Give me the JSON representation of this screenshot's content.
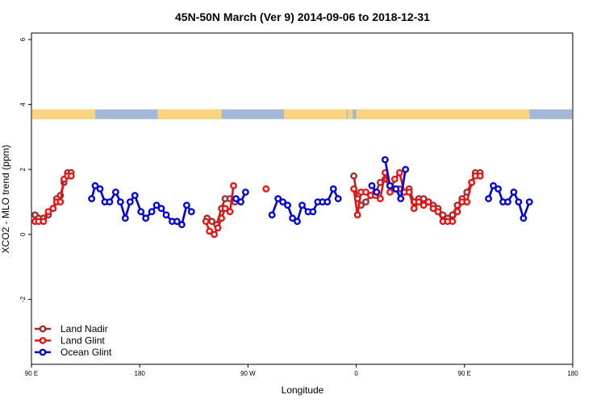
{
  "chart_data": {
    "type": "line",
    "title": "45N-50N March (Ver 9)   2014-09-06 to 2018-12-31",
    "xlabel": "Longitude",
    "ylabel": "XCO2 - MLO trend (ppm)",
    "xlim": [
      90,
      540
    ],
    "ylim": [
      -4,
      6.2
    ],
    "x_ticks": [
      {
        "value": 90,
        "label": "90 E"
      },
      {
        "value": 180,
        "label": "180"
      },
      {
        "value": 270,
        "label": "90 W"
      },
      {
        "value": 360,
        "label": "0"
      },
      {
        "value": 450,
        "label": "90 E"
      },
      {
        "value": 540,
        "label": "180"
      }
    ],
    "y_ticks": [
      {
        "value": -2,
        "label": "-2"
      },
      {
        "value": 0,
        "label": "0"
      },
      {
        "value": 2,
        "label": "2"
      },
      {
        "value": 4,
        "label": "4"
      },
      {
        "value": 6,
        "label": "6"
      }
    ],
    "land_band": {
      "y_range": [
        3.55,
        3.85
      ],
      "ocean_color": "#a3b8d8",
      "land_color": "#f8d57e",
      "land_spans": [
        [
          90,
          143
        ],
        [
          195,
          248
        ],
        [
          300,
          352
        ],
        [
          353,
          357
        ],
        [
          360,
          504
        ]
      ]
    },
    "legend": {
      "position": "bottom-left"
    },
    "series": [
      {
        "name": "Land Nadir",
        "color": "#a52a2a",
        "segments": [
          [
            [
              93,
              0.6
            ],
            [
              96,
              0.5
            ],
            [
              100,
              0.5
            ],
            [
              104,
              0.6
            ],
            [
              108,
              0.8
            ],
            [
              111,
              1.1
            ],
            [
              114,
              1.2
            ],
            [
              117,
              1.6
            ],
            [
              120,
              1.9
            ],
            [
              123,
              1.9
            ]
          ],
          [
            [
              236,
              0.5
            ],
            [
              240,
              0.4
            ],
            [
              244,
              0.3
            ],
            [
              248,
              0.8
            ],
            [
              251,
              1.1
            ],
            [
              255,
              1.1
            ],
            [
              259,
              1.0
            ]
          ],
          [
            [
              358,
              1.8
            ],
            [
              361,
              1.1
            ],
            [
              364,
              0.9
            ],
            [
              368,
              1.0
            ],
            [
              372,
              1.2
            ],
            [
              376,
              1.3
            ],
            [
              380,
              1.6
            ],
            [
              384,
              1.7
            ],
            [
              388,
              1.5
            ],
            [
              392,
              1.4
            ],
            [
              396,
              1.4
            ],
            [
              400,
              1.3
            ],
            [
              404,
              1.4
            ],
            [
              408,
              1.0
            ],
            [
              412,
              1.1
            ],
            [
              416,
              1.1
            ],
            [
              420,
              1.0
            ],
            [
              424,
              0.9
            ],
            [
              428,
              0.8
            ],
            [
              432,
              0.6
            ],
            [
              436,
              0.5
            ],
            [
              440,
              0.6
            ],
            [
              444,
              0.9
            ],
            [
              448,
              1.1
            ],
            [
              452,
              1.3
            ],
            [
              456,
              1.6
            ],
            [
              459,
              1.9
            ],
            [
              463,
              1.9
            ]
          ]
        ]
      },
      {
        "name": "Land Glint",
        "color": "#ee1111",
        "segments": [
          [
            [
              93,
              0.4
            ],
            [
              96,
              0.4
            ],
            [
              100,
              0.4
            ],
            [
              104,
              0.7
            ],
            [
              108,
              0.8
            ],
            [
              111,
              1.0
            ],
            [
              114,
              1.0
            ],
            [
              117,
              1.7
            ],
            [
              120,
              1.8
            ],
            [
              123,
              1.8
            ]
          ],
          [
            [
              235,
              0.4
            ],
            [
              238,
              0.1
            ],
            [
              242,
              0.0
            ],
            [
              245,
              0.2
            ],
            [
              248,
              0.5
            ],
            [
              251,
              0.8
            ],
            [
              255,
              0.7
            ],
            [
              258,
              1.5
            ]
          ],
          [
            [
              285,
              1.4
            ]
          ],
          [
            [
              358,
              1.4
            ],
            [
              361,
              0.6
            ],
            [
              364,
              1.3
            ],
            [
              368,
              1.3
            ],
            [
              372,
              1.2
            ],
            [
              376,
              1.2
            ],
            [
              380,
              1.1
            ],
            [
              384,
              1.9
            ],
            [
              388,
              1.3
            ],
            [
              392,
              1.7
            ],
            [
              396,
              1.9
            ],
            [
              400,
              1.3
            ],
            [
              404,
              1.3
            ],
            [
              408,
              0.8
            ],
            [
              412,
              1.0
            ],
            [
              416,
              0.9
            ],
            [
              420,
              1.0
            ],
            [
              424,
              0.8
            ],
            [
              428,
              0.7
            ],
            [
              432,
              0.4
            ],
            [
              436,
              0.4
            ],
            [
              440,
              0.4
            ],
            [
              444,
              0.7
            ],
            [
              448,
              1.0
            ],
            [
              452,
              1.0
            ],
            [
              456,
              1.6
            ],
            [
              459,
              1.8
            ],
            [
              463,
              1.8
            ]
          ]
        ]
      },
      {
        "name": "Ocean Glint",
        "color": "#0000dd",
        "segments": [
          [
            [
              140,
              1.1
            ],
            [
              143,
              1.5
            ],
            [
              147,
              1.4
            ],
            [
              151,
              1.0
            ],
            [
              155,
              1.0
            ],
            [
              160,
              1.3
            ],
            [
              164,
              1.0
            ],
            [
              168,
              0.5
            ],
            [
              172,
              1.0
            ],
            [
              176,
              1.2
            ],
            [
              181,
              0.7
            ],
            [
              185,
              0.5
            ],
            [
              190,
              0.7
            ],
            [
              194,
              0.9
            ],
            [
              198,
              0.8
            ],
            [
              202,
              0.6
            ],
            [
              207,
              0.4
            ],
            [
              211,
              0.4
            ],
            [
              215,
              0.3
            ],
            [
              219,
              0.9
            ],
            [
              223,
              0.7
            ]
          ],
          [
            [
              260,
              1.1
            ],
            [
              264,
              1.0
            ],
            [
              268,
              1.3
            ]
          ],
          [
            [
              290,
              0.6
            ],
            [
              295,
              1.1
            ],
            [
              299,
              1.0
            ],
            [
              303,
              0.9
            ],
            [
              307,
              0.5
            ],
            [
              311,
              0.4
            ],
            [
              315,
              0.9
            ],
            [
              320,
              0.7
            ],
            [
              324,
              0.7
            ],
            [
              328,
              1.0
            ],
            [
              332,
              1.0
            ],
            [
              336,
              1.0
            ],
            [
              341,
              1.4
            ],
            [
              345,
              1.1
            ]
          ],
          [
            [
              373,
              1.5
            ],
            [
              377,
              1.3
            ]
          ],
          [
            [
              384,
              2.3
            ],
            [
              388,
              1.5
            ],
            [
              393,
              1.4
            ],
            [
              397,
              1.1
            ],
            [
              401,
              2.0
            ]
          ],
          [
            [
              470,
              1.1
            ],
            [
              474,
              1.5
            ],
            [
              478,
              1.4
            ],
            [
              482,
              1.0
            ],
            [
              486,
              1.0
            ],
            [
              491,
              1.3
            ],
            [
              495,
              1.0
            ],
            [
              499,
              0.5
            ],
            [
              504,
              1.0
            ]
          ]
        ]
      }
    ]
  }
}
